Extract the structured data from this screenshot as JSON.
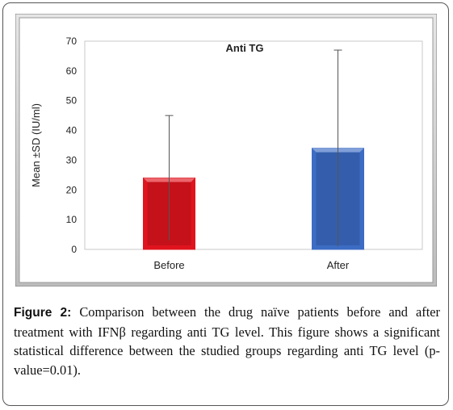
{
  "chart_data": {
    "type": "bar",
    "title": "Anti TG",
    "ylabel": "Mean ±SD (IU/ml)",
    "xlabel": "",
    "categories": [
      "Before",
      "After"
    ],
    "values": [
      24,
      34
    ],
    "error_plus": [
      21,
      33
    ],
    "error_minus": [
      21,
      33
    ],
    "ylim": [
      0,
      70
    ],
    "yticks": [
      "0",
      "10",
      "20",
      "30",
      "40",
      "50",
      "60",
      "70"
    ],
    "grid": false,
    "legend": "none",
    "colors": [
      "#e0141e",
      "#3c6cc4"
    ],
    "error_color": "#555555"
  },
  "caption": {
    "lead": "Figure 2:",
    "text": " Comparison between the drug naïve patients before and after treatment with IFNβ regarding anti TG level. This figure shows a significant statistical difference between the studied groups regarding anti TG level (p-value=0.01)."
  }
}
